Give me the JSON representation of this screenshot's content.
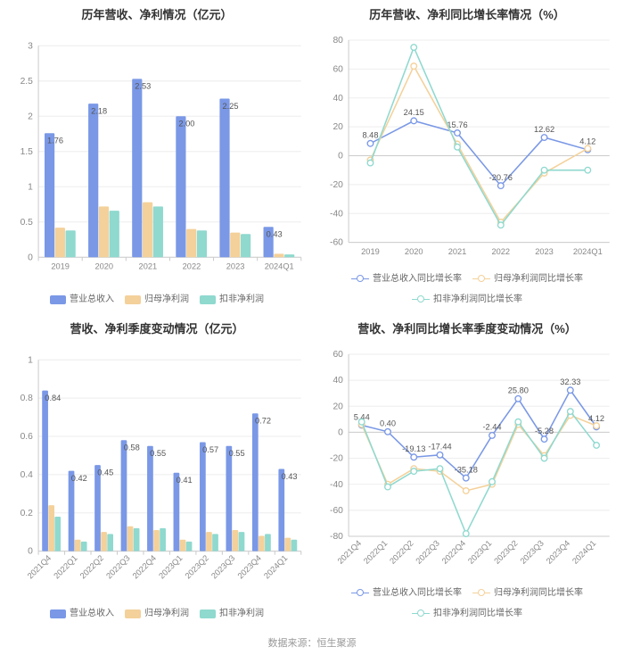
{
  "footer_text": "数据来源：恒生聚源",
  "colors": {
    "series1": "#7a98e6",
    "series2": "#f4d19a",
    "series3": "#8fd9cf",
    "grid": "#eeeeee",
    "axis": "#cccccc",
    "text": "#888888",
    "title": "#333333",
    "bg": "#ffffff"
  },
  "chart1": {
    "title": "历年营收、净利情况（亿元）",
    "type": "bar",
    "categories": [
      "2019",
      "2020",
      "2021",
      "2022",
      "2023",
      "2024Q1"
    ],
    "series": [
      {
        "name": "营业总收入",
        "color": "#7a98e6",
        "values": [
          1.76,
          2.18,
          2.53,
          2.0,
          2.25,
          0.43
        ],
        "show_labels": [
          1.76,
          2.18,
          2.53,
          2.0,
          2.25,
          0.43
        ]
      },
      {
        "name": "归母净利润",
        "color": "#f4d19a",
        "values": [
          0.42,
          0.72,
          0.78,
          0.4,
          0.35,
          0.05
        ]
      },
      {
        "name": "扣非净利润",
        "color": "#8fd9cf",
        "values": [
          0.38,
          0.66,
          0.72,
          0.38,
          0.33,
          0.04
        ]
      }
    ],
    "ylim": [
      0,
      3
    ],
    "ytick_step": 0.5,
    "bar_group_width": 0.72,
    "legend": [
      "营业总收入",
      "归母净利润",
      "扣非净利润"
    ]
  },
  "chart2": {
    "title": "历年营收、净利同比增长率情况（%）",
    "type": "line",
    "categories": [
      "2019",
      "2020",
      "2021",
      "2022",
      "2023",
      "2024Q1"
    ],
    "series": [
      {
        "name": "营业总收入同比增长率",
        "color": "#7a98e6",
        "values": [
          8.48,
          24.15,
          15.76,
          -20.76,
          12.62,
          4.12
        ],
        "labeled_indices": [
          0,
          1,
          2,
          3,
          4,
          5
        ]
      },
      {
        "name": "归母净利润同比增长率",
        "color": "#f4d19a",
        "values": [
          -3,
          62,
          8,
          -46,
          -12,
          5
        ]
      },
      {
        "name": "扣非净利润同比增长率",
        "color": "#8fd9cf",
        "values": [
          -5,
          75,
          6,
          -48,
          -10,
          -10
        ]
      }
    ],
    "ylim": [
      -60,
      80
    ],
    "ytick_step": 20,
    "legend": [
      "营业总收入同比增长率",
      "归母净利润同比增长率",
      "扣非净利润同比增长率"
    ]
  },
  "chart3": {
    "title": "营收、净利季度变动情况（亿元）",
    "type": "bar",
    "categories": [
      "2021Q4",
      "2022Q1",
      "2022Q2",
      "2022Q3",
      "2022Q4",
      "2023Q1",
      "2023Q2",
      "2023Q3",
      "2023Q4",
      "2024Q1"
    ],
    "x_rotate": 45,
    "series": [
      {
        "name": "营业总收入",
        "color": "#7a98e6",
        "values": [
          0.84,
          0.42,
          0.45,
          0.58,
          0.55,
          0.41,
          0.57,
          0.55,
          0.72,
          0.43
        ],
        "show_labels": [
          0.84,
          0.42,
          0.45,
          0.58,
          0.55,
          0.41,
          0.57,
          0.55,
          0.72,
          0.43
        ]
      },
      {
        "name": "归母净利润",
        "color": "#f4d19a",
        "values": [
          0.24,
          0.06,
          0.1,
          0.13,
          0.11,
          0.06,
          0.1,
          0.11,
          0.08,
          0.07
        ]
      },
      {
        "name": "扣非净利润",
        "color": "#8fd9cf",
        "values": [
          0.18,
          0.05,
          0.09,
          0.12,
          0.12,
          0.05,
          0.09,
          0.1,
          0.09,
          0.06
        ]
      }
    ],
    "ylim": [
      0,
      1
    ],
    "ytick_step": 0.2,
    "bar_group_width": 0.72,
    "legend": [
      "营业总收入",
      "归母净利润",
      "扣非净利润"
    ]
  },
  "chart4": {
    "title": "营收、净利同比增长率季度变动情况（%）",
    "type": "line",
    "categories": [
      "2021Q4",
      "2022Q1",
      "2022Q2",
      "2022Q3",
      "2022Q4",
      "2023Q1",
      "2023Q2",
      "2023Q3",
      "2023Q4",
      "2024Q1"
    ],
    "x_rotate": 45,
    "series": [
      {
        "name": "营业总收入同比增长率",
        "color": "#7a98e6",
        "values": [
          5.44,
          0.4,
          -19.13,
          -17.44,
          -35.18,
          -2.44,
          25.8,
          -5.28,
          32.33,
          4.12
        ],
        "labeled_indices": [
          0,
          1,
          2,
          3,
          4,
          5,
          6,
          7,
          8,
          9
        ]
      },
      {
        "name": "归母净利润同比增长率",
        "color": "#f4d19a",
        "values": [
          6,
          -40,
          -28,
          -30,
          -45,
          -40,
          6,
          -18,
          13,
          5
        ]
      },
      {
        "name": "扣非净利润同比增长率",
        "color": "#8fd9cf",
        "values": [
          8,
          -42,
          -30,
          -28,
          -78,
          -38,
          8,
          -20,
          16,
          -10
        ]
      }
    ],
    "ylim": [
      -80,
      60
    ],
    "ytick_step": 20,
    "legend": [
      "营业总收入同比增长率",
      "归母净利润同比增长率",
      "扣非净利润同比增长率"
    ]
  }
}
